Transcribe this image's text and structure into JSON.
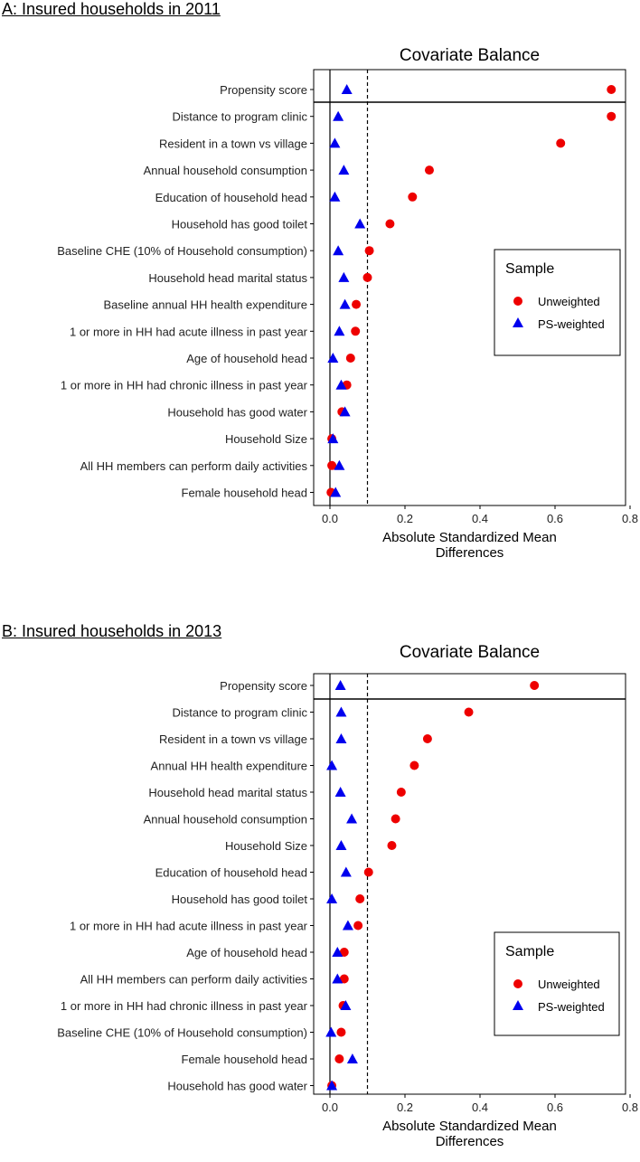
{
  "panels": [
    {
      "label": "A: Insured households in 2011"
    },
    {
      "label": "B: Insured households in 2013"
    }
  ],
  "colors": {
    "unweighted": "#ee0000",
    "ps_weighted": "#0000ee",
    "axis": "#000000"
  },
  "chart_data": [
    {
      "type": "scatter",
      "title": "Covariate Balance",
      "xlabel": [
        "Absolute Standardized Mean",
        "Differences"
      ],
      "ylabel": "",
      "xlim": [
        0,
        0.8
      ],
      "xticks": [
        0.0,
        0.2,
        0.4,
        0.6,
        0.8
      ],
      "xtick_labels": [
        "0.0",
        "0.2",
        "0.4",
        "0.6",
        "0.8"
      ],
      "threshold": 0.1,
      "legend": {
        "title": "Sample",
        "placement": "right-middle",
        "entries": [
          "Unweighted",
          "PS-weighted"
        ]
      },
      "categories": [
        "Propensity score",
        "Distance to program clinic",
        "Resident in a town vs village",
        "Annual household consumption",
        "Education of household head",
        "Household has good toilet",
        "Baseline CHE (10% of Household consumption)",
        "Household head marital status",
        "Baseline annual HH health expenditure",
        "1 or more in HH had acute illness in past year",
        "Age of household head",
        "1 or more in HH had chronic illness in past year",
        "Household has good water",
        "Household Size",
        "All HH members can perform daily activities",
        "Female household head"
      ],
      "series": [
        {
          "name": "Unweighted",
          "marker": "circle",
          "values": [
            0.75,
            0.75,
            0.615,
            0.265,
            0.22,
            0.16,
            0.105,
            0.1,
            0.07,
            0.068,
            0.055,
            0.045,
            0.032,
            0.005,
            0.005,
            0.003
          ]
        },
        {
          "name": "PS-weighted",
          "marker": "triangle",
          "values": [
            0.045,
            0.022,
            0.013,
            0.037,
            0.013,
            0.08,
            0.022,
            0.037,
            0.04,
            0.025,
            0.008,
            0.03,
            0.04,
            0.008,
            0.025,
            0.015
          ]
        }
      ]
    },
    {
      "type": "scatter",
      "title": "Covariate Balance",
      "xlabel": [
        "Absolute Standardized Mean",
        "Differences"
      ],
      "ylabel": "",
      "xlim": [
        0,
        0.8
      ],
      "xticks": [
        0.0,
        0.2,
        0.4,
        0.6,
        0.8
      ],
      "xtick_labels": [
        "0.0",
        "0.2",
        "0.4",
        "0.6",
        "0.8"
      ],
      "threshold": 0.1,
      "legend": {
        "title": "Sample",
        "placement": "right-middle",
        "entries": [
          "Unweighted",
          "PS-weighted"
        ]
      },
      "categories": [
        "Propensity score",
        "Distance to program clinic",
        "Resident in a town vs village",
        "Annual HH health expenditure",
        "Household head marital status",
        "Annual household consumption",
        "Household Size",
        "Education of household head",
        "Household has good toilet",
        "1 or more in HH had acute illness in past year",
        "Age of household head",
        "All HH members can perform daily activities",
        "1 or more in HH had chronic illness in past year",
        "Baseline CHE (10% of Household consumption)",
        "Female household head",
        "Household has good water"
      ],
      "series": [
        {
          "name": "Unweighted",
          "marker": "circle",
          "values": [
            0.545,
            0.37,
            0.26,
            0.225,
            0.19,
            0.175,
            0.165,
            0.103,
            0.08,
            0.075,
            0.038,
            0.038,
            0.035,
            0.03,
            0.025,
            0.005
          ]
        },
        {
          "name": "PS-weighted",
          "marker": "triangle",
          "values": [
            0.028,
            0.03,
            0.03,
            0.005,
            0.028,
            0.058,
            0.03,
            0.043,
            0.005,
            0.048,
            0.02,
            0.02,
            0.042,
            0.003,
            0.06,
            0.005
          ]
        }
      ]
    }
  ]
}
